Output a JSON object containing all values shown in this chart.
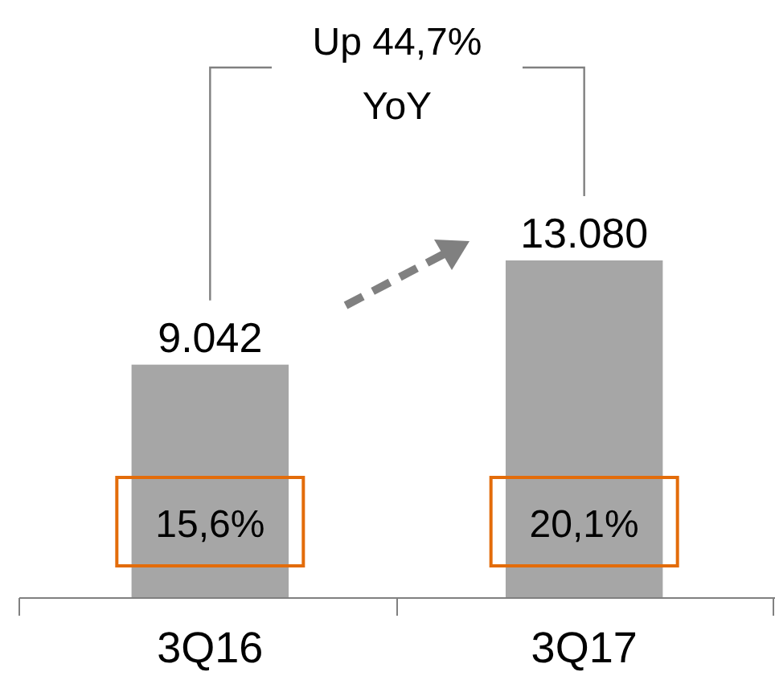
{
  "chart_data": {
    "type": "bar",
    "categories": [
      "3Q16",
      "3Q17"
    ],
    "values": [
      9042,
      13080
    ],
    "value_labels": [
      "9.042",
      "13.080"
    ],
    "color": "#a6a6a6",
    "annotations": [
      "15,6%",
      "20,1%",
      "Up 44,7% YoY"
    ]
  }
}
